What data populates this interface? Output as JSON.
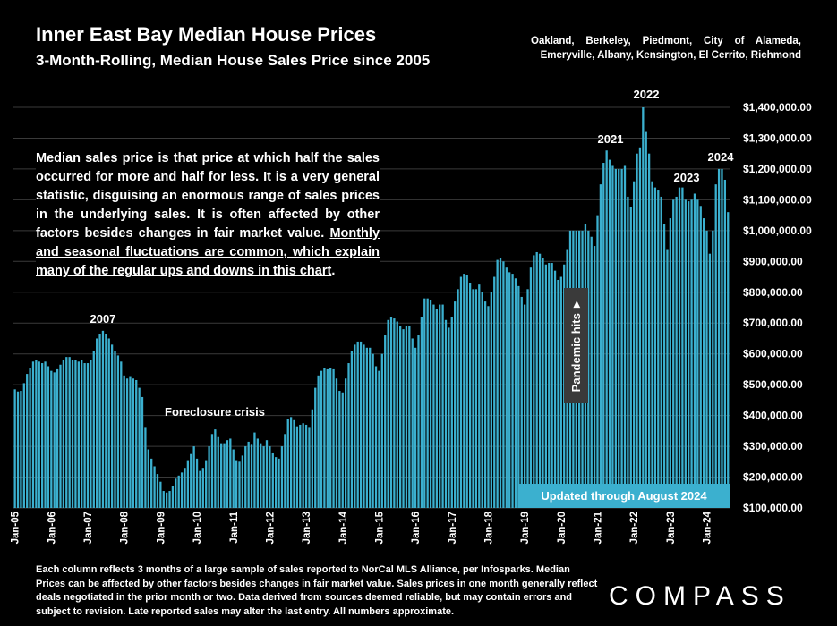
{
  "header": {
    "title": "Inner East Bay Median House Prices",
    "subtitle": "3-Month-Rolling, Median House Sales Price since 2005",
    "regions": "Oakland, Berkeley, Piedmont, City of Alameda, Emeryville, Albany, Kensington, El Cerrito, Richmond"
  },
  "info": {
    "plain": "Median sales price is that price at which half the sales occurred for more and half for less. It is a very general statistic, disguising an enormous range of sales prices in the underlying sales. It is often affected by other factors besides changes in fair market value.",
    "underlined": "Monthly and seasonal fluctuations are common, which explain many of the regular ups and downs in this chart",
    "end": "."
  },
  "footnote": "Each column reflects 3 months of a large sample of sales reported to NorCal MLS Alliance, per Infosparks. Median Prices can be affected by other factors besides changes in fair market value. Sales prices in one month generally reflect deals negotiated in the prior month or two. Data derived from sources deemed reliable, but may contain errors and subject to revision. Late reported sales may alter the last entry. All numbers approximate.",
  "logo": "COMPASS",
  "colors": {
    "bar": "#3bb0cf",
    "background": "#000000",
    "grid": "#3a3a3a",
    "pandemic_box": "#3a3a3a",
    "updated_box": "#3bb0cf"
  },
  "chart_data": {
    "type": "bar",
    "title": "Inner East Bay Median House Prices",
    "subtitle": "3-Month-Rolling, Median House Sales Price since 2005",
    "ylim": [
      100000,
      1400000
    ],
    "yticks": [
      "$100,000.00",
      "$200,000.00",
      "$300,000.00",
      "$400,000.00",
      "$500,000.00",
      "$600,000.00",
      "$700,000.00",
      "$800,000.00",
      "$900,000.00",
      "$1,000,000.00",
      "$1,100,000.00",
      "$1,200,000.00",
      "$1,300,000.00",
      "$1,400,000.00"
    ],
    "x_start": "Jan-05",
    "xticks": [
      "Jan-05",
      "Jan-06",
      "Jan-07",
      "Jan-08",
      "Jan-09",
      "Jan-10",
      "Jan-11",
      "Jan-12",
      "Jan-13",
      "Jan-14",
      "Jan-15",
      "Jan-16",
      "Jan-17",
      "Jan-18",
      "Jan-19",
      "Jan-20",
      "Jan-21",
      "Jan-22",
      "Jan-23",
      "Jan-24"
    ],
    "grid": true,
    "values": [
      485000,
      478000,
      480000,
      505000,
      535000,
      555000,
      575000,
      580000,
      575000,
      570000,
      575000,
      560000,
      545000,
      540000,
      550000,
      565000,
      580000,
      590000,
      590000,
      580000,
      580000,
      575000,
      580000,
      570000,
      570000,
      580000,
      610000,
      650000,
      665000,
      675000,
      665000,
      650000,
      630000,
      610000,
      595000,
      575000,
      530000,
      520000,
      525000,
      520000,
      515000,
      490000,
      460000,
      360000,
      290000,
      260000,
      235000,
      210000,
      185000,
      155000,
      150000,
      155000,
      170000,
      195000,
      205000,
      215000,
      230000,
      255000,
      275000,
      300000,
      260000,
      220000,
      230000,
      255000,
      300000,
      340000,
      355000,
      330000,
      310000,
      310000,
      320000,
      325000,
      290000,
      255000,
      250000,
      270000,
      300000,
      315000,
      305000,
      345000,
      325000,
      310000,
      300000,
      320000,
      300000,
      280000,
      265000,
      260000,
      300000,
      340000,
      390000,
      395000,
      385000,
      365000,
      370000,
      375000,
      370000,
      360000,
      420000,
      490000,
      530000,
      545000,
      555000,
      550000,
      555000,
      550000,
      520000,
      480000,
      475000,
      520000,
      570000,
      610000,
      630000,
      640000,
      640000,
      630000,
      620000,
      620000,
      600000,
      560000,
      545000,
      600000,
      660000,
      710000,
      720000,
      715000,
      705000,
      690000,
      680000,
      690000,
      690000,
      650000,
      620000,
      660000,
      720000,
      780000,
      780000,
      775000,
      760000,
      745000,
      760000,
      760000,
      710000,
      685000,
      720000,
      770000,
      810000,
      850000,
      860000,
      855000,
      830000,
      810000,
      810000,
      825000,
      800000,
      770000,
      755000,
      800000,
      850000,
      905000,
      910000,
      900000,
      880000,
      865000,
      860000,
      845000,
      820000,
      785000,
      760000,
      810000,
      880000,
      920000,
      930000,
      925000,
      910000,
      890000,
      895000,
      895000,
      870000,
      840000,
      850000,
      890000,
      940000,
      1000000,
      1000000,
      1000000,
      1000000,
      1000000,
      1020000,
      1000000,
      980000,
      950000,
      1050000,
      1150000,
      1220000,
      1260000,
      1230000,
      1210000,
      1200000,
      1200000,
      1200000,
      1210000,
      1110000,
      1075000,
      1160000,
      1250000,
      1270000,
      1400000,
      1320000,
      1250000,
      1160000,
      1140000,
      1130000,
      1110000,
      1020000,
      940000,
      1040000,
      1100000,
      1110000,
      1140000,
      1140000,
      1100000,
      1095000,
      1100000,
      1120000,
      1100000,
      1080000,
      1040000,
      1000000,
      925000,
      1000000,
      1150000,
      1200000,
      1200000,
      1165000,
      1060000
    ],
    "annotations": [
      {
        "label": "2007"
      },
      {
        "label": "Foreclosure crisis"
      },
      {
        "label": "2021"
      },
      {
        "label": "2022"
      },
      {
        "label": "2023"
      },
      {
        "label": "2024"
      },
      {
        "label": "Pandemic hits ►"
      },
      {
        "label": "Updated through August 2024"
      }
    ]
  }
}
